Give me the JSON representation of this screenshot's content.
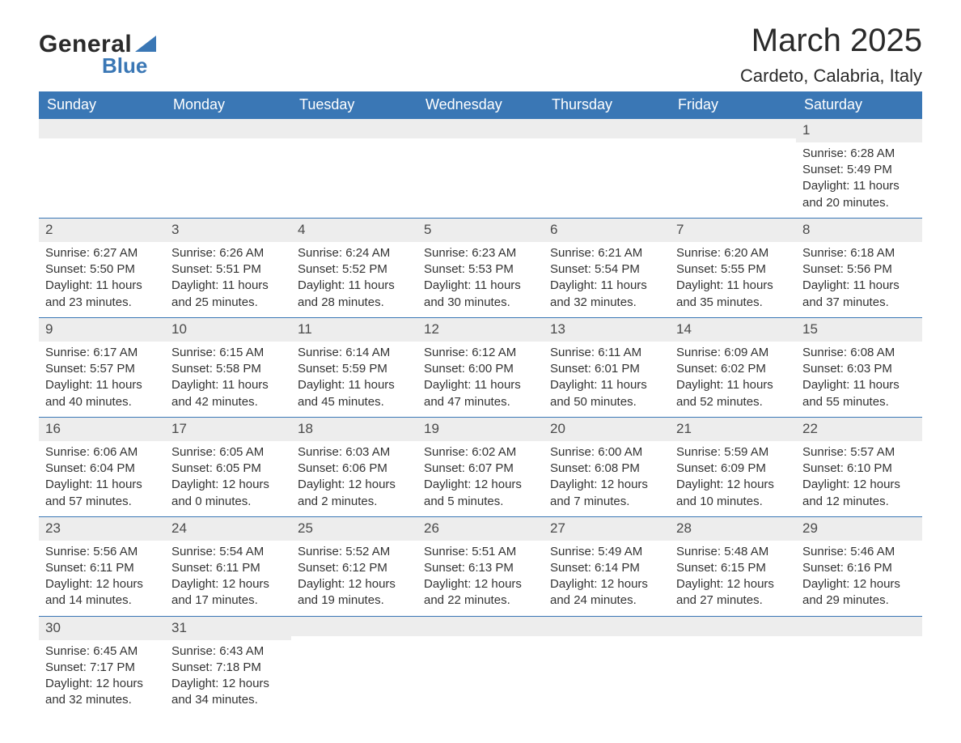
{
  "brand": {
    "word1": "General",
    "word2": "Blue",
    "text_color": "#2a2a2a",
    "accent_color": "#3a77b5"
  },
  "title": {
    "month": "March 2025",
    "location": "Cardeto, Calabria, Italy"
  },
  "colors": {
    "header_bg": "#3a77b5",
    "header_text": "#ffffff",
    "daynum_bg": "#ededed",
    "daynum_text": "#4a4a4a",
    "body_text": "#333333",
    "row_border": "#3a77b5",
    "page_bg": "#ffffff"
  },
  "fonts": {
    "title_size_pt": 30,
    "location_size_pt": 17,
    "header_size_pt": 14,
    "daynum_size_pt": 13,
    "body_size_pt": 11
  },
  "weekday_labels": [
    "Sunday",
    "Monday",
    "Tuesday",
    "Wednesday",
    "Thursday",
    "Friday",
    "Saturday"
  ],
  "weeks": [
    [
      {
        "n": "",
        "sunrise": "",
        "sunset": "",
        "daylight": ""
      },
      {
        "n": "",
        "sunrise": "",
        "sunset": "",
        "daylight": ""
      },
      {
        "n": "",
        "sunrise": "",
        "sunset": "",
        "daylight": ""
      },
      {
        "n": "",
        "sunrise": "",
        "sunset": "",
        "daylight": ""
      },
      {
        "n": "",
        "sunrise": "",
        "sunset": "",
        "daylight": ""
      },
      {
        "n": "",
        "sunrise": "",
        "sunset": "",
        "daylight": ""
      },
      {
        "n": "1",
        "sunrise": "Sunrise: 6:28 AM",
        "sunset": "Sunset: 5:49 PM",
        "daylight": "Daylight: 11 hours and 20 minutes."
      }
    ],
    [
      {
        "n": "2",
        "sunrise": "Sunrise: 6:27 AM",
        "sunset": "Sunset: 5:50 PM",
        "daylight": "Daylight: 11 hours and 23 minutes."
      },
      {
        "n": "3",
        "sunrise": "Sunrise: 6:26 AM",
        "sunset": "Sunset: 5:51 PM",
        "daylight": "Daylight: 11 hours and 25 minutes."
      },
      {
        "n": "4",
        "sunrise": "Sunrise: 6:24 AM",
        "sunset": "Sunset: 5:52 PM",
        "daylight": "Daylight: 11 hours and 28 minutes."
      },
      {
        "n": "5",
        "sunrise": "Sunrise: 6:23 AM",
        "sunset": "Sunset: 5:53 PM",
        "daylight": "Daylight: 11 hours and 30 minutes."
      },
      {
        "n": "6",
        "sunrise": "Sunrise: 6:21 AM",
        "sunset": "Sunset: 5:54 PM",
        "daylight": "Daylight: 11 hours and 32 minutes."
      },
      {
        "n": "7",
        "sunrise": "Sunrise: 6:20 AM",
        "sunset": "Sunset: 5:55 PM",
        "daylight": "Daylight: 11 hours and 35 minutes."
      },
      {
        "n": "8",
        "sunrise": "Sunrise: 6:18 AM",
        "sunset": "Sunset: 5:56 PM",
        "daylight": "Daylight: 11 hours and 37 minutes."
      }
    ],
    [
      {
        "n": "9",
        "sunrise": "Sunrise: 6:17 AM",
        "sunset": "Sunset: 5:57 PM",
        "daylight": "Daylight: 11 hours and 40 minutes."
      },
      {
        "n": "10",
        "sunrise": "Sunrise: 6:15 AM",
        "sunset": "Sunset: 5:58 PM",
        "daylight": "Daylight: 11 hours and 42 minutes."
      },
      {
        "n": "11",
        "sunrise": "Sunrise: 6:14 AM",
        "sunset": "Sunset: 5:59 PM",
        "daylight": "Daylight: 11 hours and 45 minutes."
      },
      {
        "n": "12",
        "sunrise": "Sunrise: 6:12 AM",
        "sunset": "Sunset: 6:00 PM",
        "daylight": "Daylight: 11 hours and 47 minutes."
      },
      {
        "n": "13",
        "sunrise": "Sunrise: 6:11 AM",
        "sunset": "Sunset: 6:01 PM",
        "daylight": "Daylight: 11 hours and 50 minutes."
      },
      {
        "n": "14",
        "sunrise": "Sunrise: 6:09 AM",
        "sunset": "Sunset: 6:02 PM",
        "daylight": "Daylight: 11 hours and 52 minutes."
      },
      {
        "n": "15",
        "sunrise": "Sunrise: 6:08 AM",
        "sunset": "Sunset: 6:03 PM",
        "daylight": "Daylight: 11 hours and 55 minutes."
      }
    ],
    [
      {
        "n": "16",
        "sunrise": "Sunrise: 6:06 AM",
        "sunset": "Sunset: 6:04 PM",
        "daylight": "Daylight: 11 hours and 57 minutes."
      },
      {
        "n": "17",
        "sunrise": "Sunrise: 6:05 AM",
        "sunset": "Sunset: 6:05 PM",
        "daylight": "Daylight: 12 hours and 0 minutes."
      },
      {
        "n": "18",
        "sunrise": "Sunrise: 6:03 AM",
        "sunset": "Sunset: 6:06 PM",
        "daylight": "Daylight: 12 hours and 2 minutes."
      },
      {
        "n": "19",
        "sunrise": "Sunrise: 6:02 AM",
        "sunset": "Sunset: 6:07 PM",
        "daylight": "Daylight: 12 hours and 5 minutes."
      },
      {
        "n": "20",
        "sunrise": "Sunrise: 6:00 AM",
        "sunset": "Sunset: 6:08 PM",
        "daylight": "Daylight: 12 hours and 7 minutes."
      },
      {
        "n": "21",
        "sunrise": "Sunrise: 5:59 AM",
        "sunset": "Sunset: 6:09 PM",
        "daylight": "Daylight: 12 hours and 10 minutes."
      },
      {
        "n": "22",
        "sunrise": "Sunrise: 5:57 AM",
        "sunset": "Sunset: 6:10 PM",
        "daylight": "Daylight: 12 hours and 12 minutes."
      }
    ],
    [
      {
        "n": "23",
        "sunrise": "Sunrise: 5:56 AM",
        "sunset": "Sunset: 6:11 PM",
        "daylight": "Daylight: 12 hours and 14 minutes."
      },
      {
        "n": "24",
        "sunrise": "Sunrise: 5:54 AM",
        "sunset": "Sunset: 6:11 PM",
        "daylight": "Daylight: 12 hours and 17 minutes."
      },
      {
        "n": "25",
        "sunrise": "Sunrise: 5:52 AM",
        "sunset": "Sunset: 6:12 PM",
        "daylight": "Daylight: 12 hours and 19 minutes."
      },
      {
        "n": "26",
        "sunrise": "Sunrise: 5:51 AM",
        "sunset": "Sunset: 6:13 PM",
        "daylight": "Daylight: 12 hours and 22 minutes."
      },
      {
        "n": "27",
        "sunrise": "Sunrise: 5:49 AM",
        "sunset": "Sunset: 6:14 PM",
        "daylight": "Daylight: 12 hours and 24 minutes."
      },
      {
        "n": "28",
        "sunrise": "Sunrise: 5:48 AM",
        "sunset": "Sunset: 6:15 PM",
        "daylight": "Daylight: 12 hours and 27 minutes."
      },
      {
        "n": "29",
        "sunrise": "Sunrise: 5:46 AM",
        "sunset": "Sunset: 6:16 PM",
        "daylight": "Daylight: 12 hours and 29 minutes."
      }
    ],
    [
      {
        "n": "30",
        "sunrise": "Sunrise: 6:45 AM",
        "sunset": "Sunset: 7:17 PM",
        "daylight": "Daylight: 12 hours and 32 minutes."
      },
      {
        "n": "31",
        "sunrise": "Sunrise: 6:43 AM",
        "sunset": "Sunset: 7:18 PM",
        "daylight": "Daylight: 12 hours and 34 minutes."
      },
      {
        "n": "",
        "sunrise": "",
        "sunset": "",
        "daylight": ""
      },
      {
        "n": "",
        "sunrise": "",
        "sunset": "",
        "daylight": ""
      },
      {
        "n": "",
        "sunrise": "",
        "sunset": "",
        "daylight": ""
      },
      {
        "n": "",
        "sunrise": "",
        "sunset": "",
        "daylight": ""
      },
      {
        "n": "",
        "sunrise": "",
        "sunset": "",
        "daylight": ""
      }
    ]
  ]
}
